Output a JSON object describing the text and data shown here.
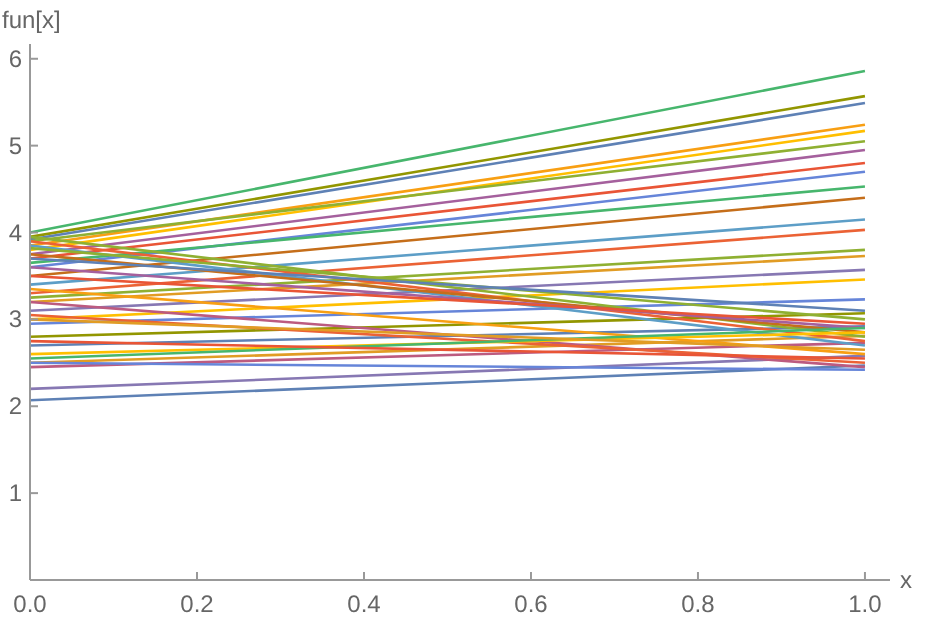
{
  "chart_data": {
    "type": "line",
    "xlabel": "x",
    "ylabel": "fun[x]",
    "x": [
      0,
      1
    ],
    "xlim": [
      0,
      1.03
    ],
    "ylim": [
      0,
      6.17
    ],
    "xticks": [
      {
        "value": 0,
        "label": "0.0"
      },
      {
        "value": 0.2,
        "label": "0.2"
      },
      {
        "value": 0.4,
        "label": "0.4"
      },
      {
        "value": 0.6,
        "label": "0.6"
      },
      {
        "value": 0.8,
        "label": "0.8"
      },
      {
        "value": 1,
        "label": "1.0"
      }
    ],
    "yticks": [
      1,
      2,
      3,
      4,
      5,
      6
    ],
    "grid": false,
    "marker": "none",
    "line_style": "solid",
    "series": [
      {
        "color": "#47b66d",
        "values": [
          4.0,
          5.86
        ]
      },
      {
        "color": "#929600",
        "values": [
          3.95,
          5.57
        ]
      },
      {
        "color": "#5e81b5",
        "values": [
          3.92,
          5.49
        ]
      },
      {
        "color": "#f89f13",
        "values": [
          3.85,
          5.24
        ]
      },
      {
        "color": "#ffbf00",
        "values": [
          3.8,
          5.17
        ]
      },
      {
        "color": "#8fb032",
        "values": [
          3.9,
          5.05
        ]
      },
      {
        "color": "#a5609d",
        "values": [
          3.75,
          4.95
        ]
      },
      {
        "color": "#e95536",
        "values": [
          3.7,
          4.8
        ]
      },
      {
        "color": "#6685d9",
        "values": [
          3.6,
          4.7
        ]
      },
      {
        "color": "#47b66d",
        "values": [
          3.65,
          4.53
        ]
      },
      {
        "color": "#c56e1a",
        "values": [
          3.5,
          4.4
        ]
      },
      {
        "color": "#5d9ec7",
        "values": [
          3.4,
          4.15
        ]
      },
      {
        "color": "#eb6235",
        "values": [
          3.3,
          4.03
        ]
      },
      {
        "color": "#8fb032",
        "values": [
          3.25,
          3.8
        ]
      },
      {
        "color": "#e19c24",
        "values": [
          3.2,
          3.73
        ]
      },
      {
        "color": "#8778b3",
        "values": [
          3.1,
          3.57
        ]
      },
      {
        "color": "#ffbf00",
        "values": [
          3.0,
          3.46
        ]
      },
      {
        "color": "#6685d9",
        "values": [
          2.95,
          3.23
        ]
      },
      {
        "color": "#929600",
        "values": [
          2.8,
          3.07
        ]
      },
      {
        "color": "#5e81b5",
        "values": [
          2.7,
          2.92
        ]
      },
      {
        "color": "#e19c24",
        "values": [
          2.5,
          2.81
        ]
      },
      {
        "color": "#bc5b80",
        "values": [
          2.45,
          2.73
        ]
      },
      {
        "color": "#8778b3",
        "values": [
          2.2,
          2.58
        ]
      },
      {
        "color": "#5e81b5",
        "values": [
          2.07,
          2.47
        ]
      },
      {
        "color": "#8fb032",
        "values": [
          3.95,
          2.8
        ]
      },
      {
        "color": "#eb6235",
        "values": [
          3.9,
          2.75
        ]
      },
      {
        "color": "#5d9ec7",
        "values": [
          3.85,
          2.7
        ]
      },
      {
        "color": "#c56e1a",
        "values": [
          3.75,
          2.85
        ]
      },
      {
        "color": "#a5609d",
        "values": [
          3.6,
          2.9
        ]
      },
      {
        "color": "#e95536",
        "values": [
          3.5,
          2.95
        ]
      },
      {
        "color": "#f89f13",
        "values": [
          3.35,
          2.6
        ]
      },
      {
        "color": "#bc5b80",
        "values": [
          3.2,
          2.45
        ]
      },
      {
        "color": "#eb6235",
        "values": [
          3.05,
          2.5
        ]
      },
      {
        "color": "#ffbf00",
        "values": [
          2.6,
          2.85
        ]
      },
      {
        "color": "#47b66d",
        "values": [
          2.55,
          2.9
        ]
      },
      {
        "color": "#e19c24",
        "values": [
          3.0,
          2.65
        ]
      },
      {
        "color": "#e95536",
        "values": [
          2.75,
          2.55
        ]
      },
      {
        "color": "#8fb032",
        "values": [
          3.82,
          3.0
        ]
      },
      {
        "color": "#5e81b5",
        "values": [
          3.7,
          3.1
        ]
      },
      {
        "color": "#6685d9",
        "values": [
          2.5,
          2.42
        ]
      }
    ]
  }
}
